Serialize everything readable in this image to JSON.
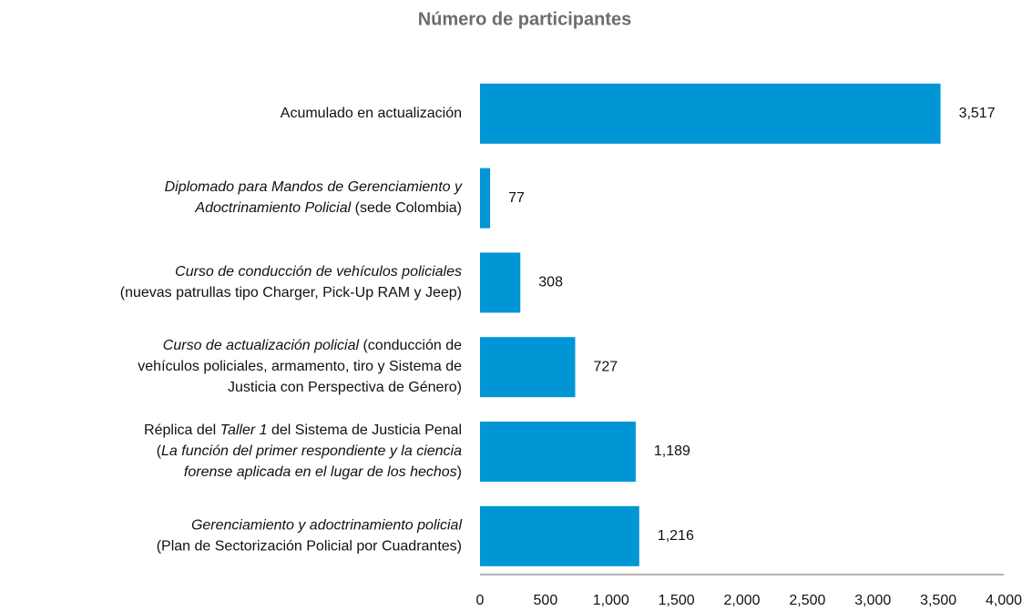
{
  "chart_data": {
    "type": "barh",
    "title": "Número de participantes",
    "categories": [
      [
        [
          "Acumulado en actualización"
        ]
      ],
      [
        [
          {
            "text": "Diplomado para Mandos de Gerenciamiento y",
            "italic": true
          }
        ],
        [
          {
            "text": "Adoctrinamiento Policial",
            "italic": true
          },
          " (sede Colombia)"
        ]
      ],
      [
        [
          {
            "text": "Curso de conducción de vehículos policiales",
            "italic": true
          }
        ],
        [
          "(nuevas patrullas tipo Charger, Pick-Up RAM y Jeep)"
        ]
      ],
      [
        [
          {
            "text": "Curso de actualización policial",
            "italic": true
          },
          " (conducción de"
        ],
        [
          "vehículos policiales, armamento, tiro y Sistema de"
        ],
        [
          "Justicia con Perspectiva de Género)"
        ]
      ],
      [
        [
          "Réplica del ",
          {
            "text": "Taller 1",
            "italic": true
          },
          " del Sistema de Justicia Penal"
        ],
        [
          "(",
          {
            "text": "La función del primer respondiente y la ciencia",
            "italic": true
          }
        ],
        [
          {
            "text": "forense aplicada en el lugar de los hechos",
            "italic": true
          },
          ")"
        ]
      ],
      [
        [
          {
            "text": "Gerenciamiento y adoctrinamiento policial",
            "italic": true
          }
        ],
        [
          "(Plan de Sectorización Policial por Cuadrantes)"
        ]
      ]
    ],
    "values": [
      3517,
      77,
      308,
      727,
      1189,
      1216
    ],
    "value_labels": [
      "3,517",
      "77",
      "308",
      "727",
      "1,189",
      "1,216"
    ],
    "color": "#0096d6",
    "xlim": [
      0,
      4000
    ],
    "xticks": [
      0,
      500,
      {
        "value": 1000,
        "label": "1,000"
      },
      {
        "value": 1500,
        "label": "1,500"
      },
      {
        "value": 2000,
        "label": "2,000"
      },
      {
        "value": 2500,
        "label": "2,500"
      },
      {
        "value": 3000,
        "label": "3,000"
      },
      {
        "value": 3500,
        "label": "3,500"
      },
      {
        "value": 4000,
        "label": "4,000"
      }
    ],
    "grid": false
  }
}
